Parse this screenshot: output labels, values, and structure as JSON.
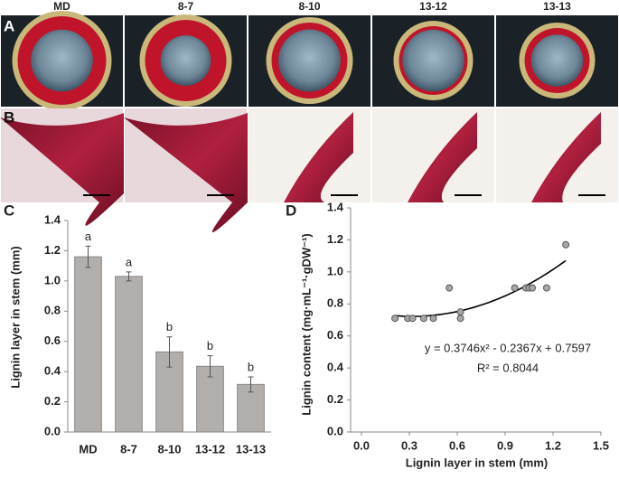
{
  "photo_panels": {
    "labels": [
      "A",
      "B"
    ],
    "columns": [
      "MD",
      "8-7",
      "8-10",
      "13-12",
      "13-13"
    ]
  },
  "chart_data": [
    {
      "type": "bar",
      "panel_label": "C",
      "ylabel": "Lignin layer in stem (mm)",
      "categories": [
        "MD",
        "8-7",
        "8-10",
        "13-12",
        "13-13"
      ],
      "values": [
        1.16,
        1.03,
        0.53,
        0.435,
        0.315
      ],
      "errors": [
        0.07,
        0.03,
        0.1,
        0.07,
        0.05
      ],
      "annotations": [
        "a",
        "a",
        "b",
        "b",
        "b"
      ],
      "color": "#b2aeab",
      "ylim": [
        0,
        1.4
      ],
      "yticks": [
        {
          "value": 0,
          "label": "0.0"
        },
        0.2,
        0.4,
        0.6,
        0.8,
        {
          "value": 1,
          "label": "1.0"
        },
        1.2,
        1.4
      ]
    },
    {
      "type": "scatter",
      "panel_label": "D",
      "xlabel": "Lignin layer in stem (mm)",
      "ylabel": "Lignin content (mg·mL⁻¹·gDW⁻¹)",
      "x": [
        0.21,
        0.29,
        0.32,
        0.39,
        0.45,
        0.55,
        0.62,
        0.62,
        0.96,
        1.03,
        1.05,
        1.07,
        1.16,
        1.28
      ],
      "values": [
        0.71,
        0.71,
        0.71,
        0.71,
        0.71,
        0.9,
        0.75,
        0.71,
        0.9,
        0.9,
        0.9,
        0.9,
        0.9,
        1.17
      ],
      "color": "#a6a6a6",
      "trendline": {
        "coefficients": [
          0.3746,
          -0.2367,
          0.7597
        ],
        "equation": "y = 0.3746x² - 0.2367x + 0.7597",
        "r2_label": "R² = 0.8044"
      },
      "xlim": [
        0,
        1.5
      ],
      "xticks": [
        {
          "value": 0,
          "label": "0.0"
        },
        0.3,
        0.6,
        0.9,
        1.2,
        1.5
      ],
      "ylim": [
        0,
        1.4
      ],
      "yticks": [
        {
          "value": 0,
          "label": "0.0"
        },
        0.2,
        0.4,
        0.6,
        0.8,
        {
          "value": 1,
          "label": "1.0"
        },
        1.2,
        1.4
      ]
    }
  ]
}
